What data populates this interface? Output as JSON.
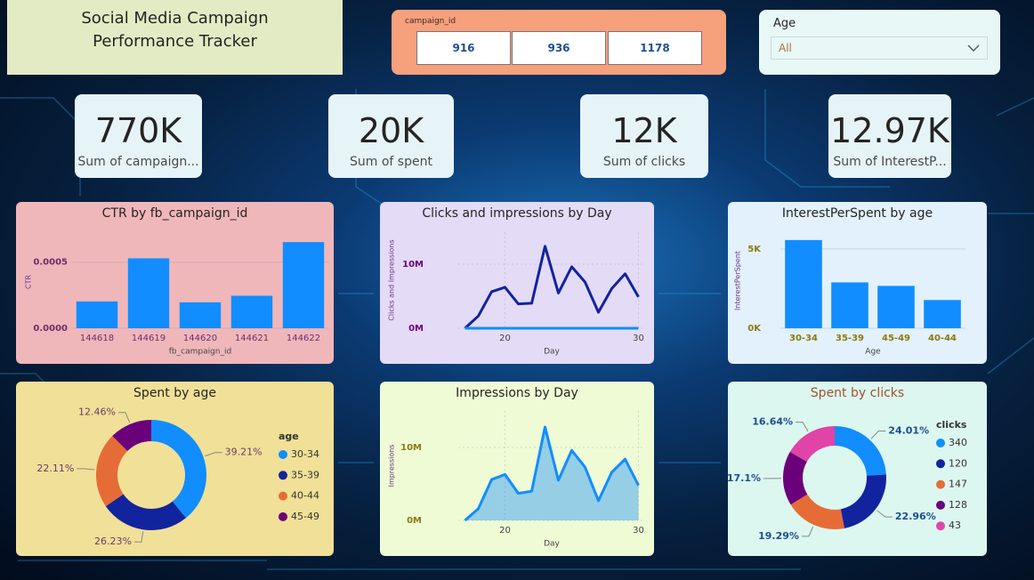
{
  "header": {
    "title": "Social Media Campaign Performance Tracker"
  },
  "slicer": {
    "label": "campaign_id",
    "options": [
      "916",
      "936",
      "1178"
    ]
  },
  "age_filter": {
    "label": "Age",
    "value": "All"
  },
  "cards": [
    {
      "value": "770K",
      "label": "Sum of campaign..."
    },
    {
      "value": "20K",
      "label": "Sum of spent"
    },
    {
      "value": "12K",
      "label": "Sum of clicks"
    },
    {
      "value": "12.97K",
      "label": "Sum of InterestP..."
    }
  ],
  "chart_data": [
    {
      "type": "bar",
      "title": "CTR by fb_campaign_id",
      "x_label": "fb_campaign_id",
      "y_label": "CTR",
      "categories": [
        "144618",
        "144619",
        "144620",
        "144621",
        "144622"
      ],
      "values": [
        0.000203,
        0.000529,
        0.000196,
        0.000246,
        0.000652
      ],
      "color": "#118dff",
      "ylim": [
        0,
        0.0007
      ],
      "yticks": [
        {
          "value": 0,
          "label": "0.0000"
        },
        0.0005
      ]
    },
    {
      "type": "line",
      "title": "Clicks and impressions by Day",
      "x_label": "Day",
      "y_label": "Clicks and Impressions",
      "x": [
        17,
        18,
        19,
        20,
        21,
        22,
        23,
        24,
        25,
        26,
        27,
        28,
        29,
        30
      ],
      "series": [
        {
          "color": "#12239e",
          "values": [
            0,
            1900000,
            5700000,
            6400000,
            3800000,
            3900000,
            12800000,
            5500000,
            9600000,
            7200000,
            2500000,
            6200000,
            8500000,
            4900000
          ]
        },
        {
          "color": "#118dff",
          "values": [
            0,
            290,
            880,
            990,
            590,
            600,
            1980,
            850,
            1490,
            1110,
            390,
            960,
            1320,
            760
          ]
        }
      ],
      "xlim": [
        16.5,
        30.5
      ],
      "xticks": [
        20,
        30
      ],
      "ylim": [
        0,
        15000000
      ],
      "yticks": [
        {
          "value": 0,
          "label": "0M"
        },
        {
          "value": 10000000,
          "label": "10M"
        }
      ],
      "grid": true
    },
    {
      "type": "bar",
      "title": "InterestPerSpent by age",
      "x_label": "Age",
      "y_label": "InterestPerSpent",
      "categories": [
        "30-34",
        "35-39",
        "45-49",
        "40-44"
      ],
      "values": [
        5560,
        2890,
        2670,
        1780
      ],
      "color": "#118dff",
      "ylim": [
        0,
        6000
      ],
      "yticks": [
        {
          "value": 0,
          "label": "0K"
        },
        {
          "value": 5000,
          "label": "5K"
        }
      ]
    },
    {
      "type": "pie",
      "title": "Spent by age",
      "legend_title": "age",
      "categories": [
        "30-34",
        "35-39",
        "40-44",
        "45-49"
      ],
      "values": [
        39.21,
        26.23,
        22.11,
        12.46
      ],
      "value_labels": [
        "39.21%",
        "26.23%",
        "22.11%",
        "12.46%"
      ],
      "colors": [
        "#118dff",
        "#12239e",
        "#e66c37",
        "#6b007b"
      ]
    },
    {
      "type": "area",
      "title": "Impressions by Day",
      "x_label": "Day",
      "y_label": "Impressions",
      "x": [
        17,
        18,
        19,
        20,
        21,
        22,
        23,
        24,
        25,
        26,
        27,
        28,
        29,
        30
      ],
      "series": [
        {
          "color": "#118dff",
          "values": [
            0,
            1600000,
            5600000,
            6300000,
            3700000,
            4000000,
            12800000,
            5500000,
            9600000,
            7300000,
            2700000,
            6600000,
            8400000,
            4800000
          ]
        }
      ],
      "xlim": [
        16.5,
        30.5
      ],
      "xticks": [
        20,
        30
      ],
      "ylim": [
        0,
        15000000
      ],
      "yticks": [
        {
          "value": 0,
          "label": "0M"
        },
        {
          "value": 10000000,
          "label": "10M"
        }
      ],
      "grid": true
    },
    {
      "type": "pie",
      "title": "Spent by clicks",
      "legend_title": "clicks",
      "categories": [
        "340",
        "120",
        "147",
        "128",
        "43"
      ],
      "values": [
        24.01,
        22.96,
        19.29,
        17.1,
        16.64
      ],
      "value_labels": [
        "24.01%",
        "22.96%",
        "19.29%",
        "17.1%",
        "16.64%"
      ],
      "colors": [
        "#118dff",
        "#12239e",
        "#e66c37",
        "#6b007b",
        "#e044a7"
      ]
    }
  ]
}
